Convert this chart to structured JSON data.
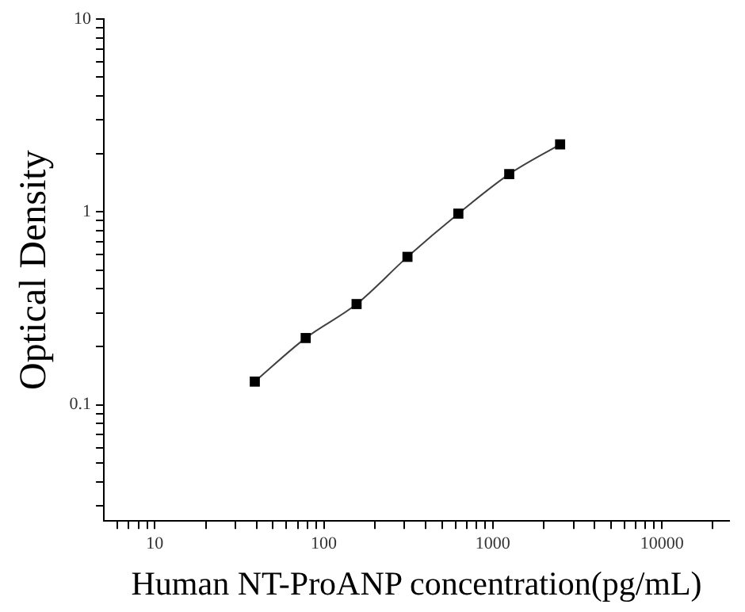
{
  "chart_data": {
    "type": "scatter",
    "xlabel": "Human NT-ProANP concentration(pg/mL)",
    "ylabel": "Optical Density",
    "log": "xy",
    "grid": false,
    "legend": false,
    "marker": "square",
    "x": [
      39.06,
      78.13,
      156.25,
      312.5,
      625,
      1250,
      2500
    ],
    "xlim": [
      5,
      25000
    ],
    "xticks": [
      {
        "value": 6,
        "label": null
      },
      {
        "value": 7,
        "label": null
      },
      {
        "value": 8,
        "label": null
      },
      {
        "value": 9,
        "label": null
      },
      10,
      {
        "value": 20,
        "label": null
      },
      {
        "value": 30,
        "label": null
      },
      {
        "value": 40,
        "label": null
      },
      {
        "value": 50,
        "label": null
      },
      {
        "value": 60,
        "label": null
      },
      {
        "value": 70,
        "label": null
      },
      {
        "value": 80,
        "label": null
      },
      {
        "value": 90,
        "label": null
      },
      100,
      {
        "value": 200,
        "label": null
      },
      {
        "value": 300,
        "label": null
      },
      {
        "value": 400,
        "label": null
      },
      {
        "value": 500,
        "label": null
      },
      {
        "value": 600,
        "label": null
      },
      {
        "value": 700,
        "label": null
      },
      {
        "value": 800,
        "label": null
      },
      {
        "value": 900,
        "label": null
      },
      1000,
      {
        "value": 2000,
        "label": null
      },
      {
        "value": 3000,
        "label": null
      },
      {
        "value": 4000,
        "label": null
      },
      {
        "value": 5000,
        "label": null
      },
      {
        "value": 6000,
        "label": null
      },
      {
        "value": 7000,
        "label": null
      },
      {
        "value": 8000,
        "label": null
      },
      {
        "value": 9000,
        "label": null
      },
      10000,
      {
        "value": 20000,
        "label": null
      }
    ],
    "ylim": [
      0.025,
      10
    ],
    "yticks": [
      {
        "value": 0.03,
        "label": null
      },
      {
        "value": 0.04,
        "label": null
      },
      {
        "value": 0.05,
        "label": null
      },
      {
        "value": 0.06,
        "label": null
      },
      {
        "value": 0.07,
        "label": null
      },
      {
        "value": 0.08,
        "label": null
      },
      {
        "value": 0.09,
        "label": null
      },
      0.1,
      {
        "value": 0.2,
        "label": null
      },
      {
        "value": 0.3,
        "label": null
      },
      {
        "value": 0.4,
        "label": null
      },
      {
        "value": 0.5,
        "label": null
      },
      {
        "value": 0.6,
        "label": null
      },
      {
        "value": 0.7,
        "label": null
      },
      {
        "value": 0.8,
        "label": null
      },
      {
        "value": 0.9,
        "label": null
      },
      1,
      {
        "value": 2,
        "label": null
      },
      {
        "value": 3,
        "label": null
      },
      {
        "value": 4,
        "label": null
      },
      {
        "value": 5,
        "label": null
      },
      {
        "value": 6,
        "label": null
      },
      {
        "value": 7,
        "label": null
      },
      {
        "value": 8,
        "label": null
      },
      {
        "value": 9,
        "label": null
      },
      10
    ],
    "series": [
      {
        "type": "line",
        "color": "#404040",
        "marker": "none",
        "x": [
          39.06,
          78.13,
          156.25,
          312.5,
          625,
          1250,
          2500
        ],
        "values": [
          0.132,
          0.222,
          0.333,
          0.585,
          0.98,
          1.57,
          2.24
        ]
      },
      {
        "color": "#000000",
        "values": [
          0.132,
          0.222,
          0.333,
          0.585,
          0.98,
          1.57,
          2.24
        ]
      }
    ]
  }
}
